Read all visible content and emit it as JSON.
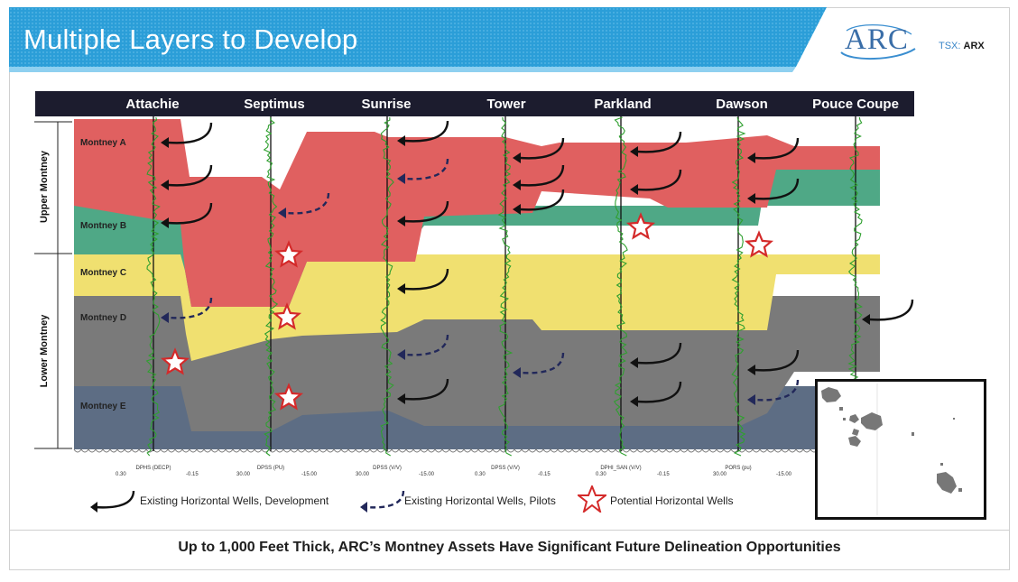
{
  "slide": {
    "title": "Multiple Layers to Develop",
    "logo_text": "ARC",
    "ticker_prefix": "TSX: ",
    "ticker_symbol": "ARX",
    "footer": "Up to 1,000 Feet Thick, ARC’s Montney Assets Have Significant Future Delineation Opportunities"
  },
  "wells": [
    "Attachie",
    "Septimus",
    "Sunrise",
    "Tower",
    "Parkland",
    "Dawson",
    "Pouce Coupe"
  ],
  "zones": {
    "upper": "Upper Montney",
    "lower": "Lower Montney"
  },
  "layers": [
    {
      "name": "Montney A",
      "color": "#e06060"
    },
    {
      "name": "Montney B",
      "color": "#4fa886"
    },
    {
      "name": "Montney C",
      "color": "#f0e070"
    },
    {
      "name": "Montney D",
      "color": "#7a7a7a"
    },
    {
      "name": "Montney E",
      "color": "#5d6d84"
    }
  ],
  "log_tracks": [
    {
      "label": "DPHS (DECP)",
      "min": "0.30",
      "max": "-0.15"
    },
    {
      "label": "DPSS (PU)",
      "min": "30.00",
      "max": "-15.00"
    },
    {
      "label": "DPSS (V/V)",
      "min": "30.00",
      "max": "-15.00"
    },
    {
      "label": "DPSS (V/V)",
      "min": "0.30",
      "max": "-0.15"
    },
    {
      "label": "DPHI_SAN (V/V)",
      "min": "0.30",
      "max": "-0.15"
    },
    {
      "label": "PORS (pu)",
      "min": "30.00",
      "max": "-15.00"
    }
  ],
  "legend": {
    "development": "Existing Horizontal Wells, Development",
    "pilots": "Existing Horizontal Wells, Pilots",
    "potential": "Potential Horizontal Wells"
  },
  "colors": {
    "banner": "#2b9ed8",
    "header_bar": "#1c1c2e",
    "log_trace": "#2fa02f",
    "development_arrow": "#111111",
    "pilot_arrow": "#22285a",
    "star": "#d42a2a"
  }
}
